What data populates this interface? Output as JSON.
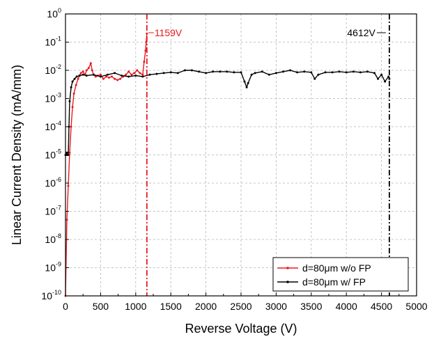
{
  "chart_data": {
    "type": "line",
    "x_scale": "linear",
    "y_scale": "log",
    "xlabel": "Reverse Voltage (V)",
    "ylabel": "Linear Current Density (mA/mm)",
    "xlim": [
      0,
      5000
    ],
    "ylim_exponent": [
      -10,
      0
    ],
    "x_ticks": [
      "0",
      "500",
      "1000",
      "1500",
      "2000",
      "2500",
      "3000",
      "3500",
      "4000",
      "4500",
      "5000"
    ],
    "y_ticks": [
      {
        "base": "10",
        "exp": "0"
      },
      {
        "base": "10",
        "exp": "-1"
      },
      {
        "base": "10",
        "exp": "-2"
      },
      {
        "base": "10",
        "exp": "-3"
      },
      {
        "base": "10",
        "exp": "-4"
      },
      {
        "base": "10",
        "exp": "-5"
      },
      {
        "base": "10",
        "exp": "-6"
      },
      {
        "base": "10",
        "exp": "-7"
      },
      {
        "base": "10",
        "exp": "-8"
      },
      {
        "base": "10",
        "exp": "-9"
      },
      {
        "base": "10",
        "exp": "-10"
      }
    ],
    "grid": true,
    "legend_position": "bottom-right",
    "series": [
      {
        "name": "d=80μm w/o FP",
        "color": "#e8181e",
        "x": [
          0,
          20,
          40,
          60,
          80,
          100,
          120,
          150,
          180,
          200,
          220,
          250,
          280,
          300,
          330,
          360,
          380,
          400,
          430,
          460,
          500,
          540,
          580,
          620,
          660,
          700,
          740,
          780,
          820,
          860,
          900,
          940,
          980,
          1020,
          1060,
          1100,
          1120,
          1140,
          1150,
          1159
        ],
        "y": [
          1e-10,
          5e-08,
          8e-07,
          1.2e-05,
          0.0001,
          0.0005,
          0.0015,
          0.003,
          0.005,
          0.0065,
          0.008,
          0.009,
          0.007,
          0.01,
          0.012,
          0.018,
          0.01,
          0.007,
          0.006,
          0.0065,
          0.007,
          0.005,
          0.006,
          0.0055,
          0.006,
          0.005,
          0.0045,
          0.005,
          0.006,
          0.007,
          0.009,
          0.007,
          0.008,
          0.01,
          0.008,
          0.007,
          0.02,
          0.05,
          0.1,
          0.2
        ]
      },
      {
        "name": "d=80μm w/ FP",
        "color": "#000000",
        "x": [
          0,
          10,
          20,
          30,
          40,
          50,
          60,
          80,
          100,
          130,
          160,
          200,
          250,
          300,
          400,
          500,
          600,
          700,
          800,
          900,
          1000,
          1100,
          1200,
          1300,
          1400,
          1500,
          1600,
          1700,
          1800,
          1900,
          2000,
          2100,
          2200,
          2300,
          2400,
          2500,
          2550,
          2580,
          2600,
          2650,
          2700,
          2800,
          2900,
          3000,
          3100,
          3200,
          3300,
          3400,
          3500,
          3550,
          3600,
          3700,
          3800,
          3900,
          4000,
          4100,
          4200,
          4300,
          4400,
          4450,
          4500,
          4550,
          4600,
          4612
        ],
        "y": [
          1e-05,
          1e-05,
          1.2e-05,
          1e-05,
          1e-05,
          0.0001,
          0.0008,
          0.0025,
          0.004,
          0.005,
          0.006,
          0.0065,
          0.007,
          0.0065,
          0.007,
          0.006,
          0.007,
          0.008,
          0.0065,
          0.006,
          0.0065,
          0.006,
          0.007,
          0.0075,
          0.008,
          0.0085,
          0.008,
          0.01,
          0.01,
          0.009,
          0.008,
          0.009,
          0.009,
          0.009,
          0.0085,
          0.0085,
          0.004,
          0.0025,
          0.0035,
          0.007,
          0.008,
          0.009,
          0.007,
          0.008,
          0.009,
          0.01,
          0.0085,
          0.009,
          0.0085,
          0.005,
          0.007,
          0.0085,
          0.0085,
          0.009,
          0.0085,
          0.009,
          0.0085,
          0.009,
          0.008,
          0.005,
          0.007,
          0.004,
          0.006,
          0.005
        ]
      }
    ],
    "annotations": [
      {
        "text": "1159V",
        "x": 1159,
        "color": "#e8181e",
        "side": "right"
      },
      {
        "text": "4612V",
        "x": 4612,
        "color": "#000000",
        "side": "left"
      }
    ]
  }
}
